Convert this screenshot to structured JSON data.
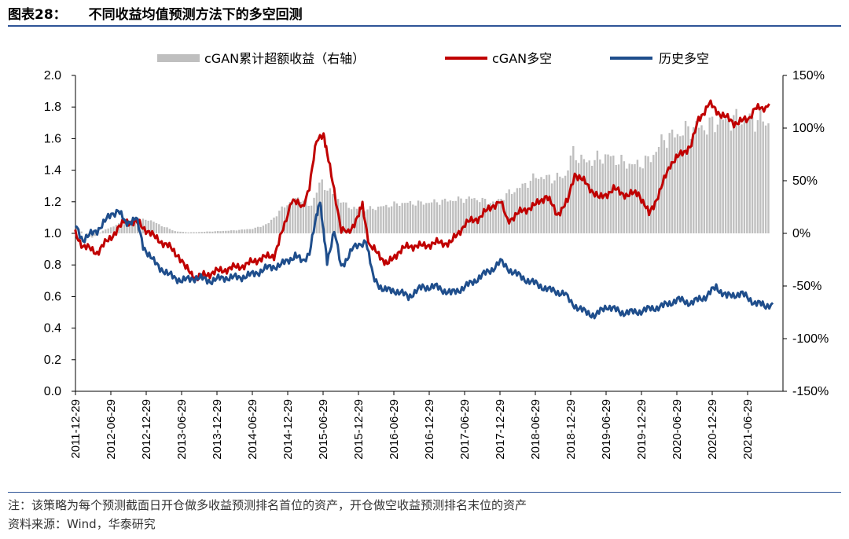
{
  "header": {
    "figure_no": "图表28：",
    "title": "不同收益均值预测方法下的多空回测"
  },
  "footer": {
    "note": "注：该策略为每个预测截面日开仓做多收益预测排名首位的资产，开仓做空收益预测排名末位的资产",
    "source": "资料来源：Wind，华泰研究"
  },
  "colors": {
    "bar": "#bfbfbf",
    "cgan": "#c00000",
    "hist": "#1f4e8c",
    "rule": "#2f5597"
  },
  "chart_data": {
    "type": "line",
    "title": "不同收益均值预测方法下的多空回测",
    "x_start": "2011-12-29",
    "x_end": "2021-12-29",
    "xticks": [
      "2011-12-29",
      "2012-06-29",
      "2012-12-29",
      "2013-06-29",
      "2013-12-29",
      "2014-06-29",
      "2014-12-29",
      "2015-06-29",
      "2015-12-29",
      "2016-06-29",
      "2016-12-29",
      "2017-06-29",
      "2017-12-29",
      "2018-06-29",
      "2018-12-29",
      "2019-06-29",
      "2019-12-29",
      "2020-06-29",
      "2020-12-29",
      "2021-06-29"
    ],
    "yleft": {
      "lim": [
        0,
        2.0
      ],
      "ticks": [
        "0.0",
        "0.2",
        "0.4",
        "0.6",
        "0.8",
        "1.0",
        "1.2",
        "1.4",
        "1.6",
        "1.8",
        "2.0"
      ]
    },
    "yright": {
      "lim": [
        -150,
        150
      ],
      "ticks": [
        "-150%",
        "-100%",
        "-50%",
        "0%",
        "50%",
        "100%",
        "150%"
      ]
    },
    "legend": [
      "cGAN累计超额收益（右轴）",
      "cGAN多空",
      "历史多空"
    ],
    "series": [
      {
        "name": "cGAN累计超额收益（右轴）",
        "kind": "bar",
        "axis": "right",
        "points": [
          [
            2011.99,
            6
          ],
          [
            2012.2,
            -5
          ],
          [
            2012.4,
            4
          ],
          [
            2012.6,
            10
          ],
          [
            2012.8,
            12
          ],
          [
            2013.0,
            15
          ],
          [
            2013.2,
            8
          ],
          [
            2013.4,
            2
          ],
          [
            2013.6,
            1
          ],
          [
            2013.9,
            2
          ],
          [
            2014.2,
            3
          ],
          [
            2014.5,
            5
          ],
          [
            2014.7,
            10
          ],
          [
            2014.95,
            30
          ],
          [
            2015.15,
            38
          ],
          [
            2015.3,
            28
          ],
          [
            2015.45,
            55
          ],
          [
            2015.6,
            42
          ],
          [
            2015.8,
            30
          ],
          [
            2016.0,
            24
          ],
          [
            2016.3,
            28
          ],
          [
            2016.6,
            32
          ],
          [
            2016.9,
            32
          ],
          [
            2017.3,
            35
          ],
          [
            2017.6,
            37
          ],
          [
            2017.9,
            32
          ],
          [
            2018.1,
            42
          ],
          [
            2018.3,
            50
          ],
          [
            2018.5,
            60
          ],
          [
            2018.7,
            58
          ],
          [
            2018.9,
            60
          ],
          [
            2019.0,
            85
          ],
          [
            2019.2,
            75
          ],
          [
            2019.5,
            82
          ],
          [
            2019.7,
            75
          ],
          [
            2019.9,
            72
          ],
          [
            2020.1,
            78
          ],
          [
            2020.3,
            100
          ],
          [
            2020.5,
            105
          ],
          [
            2020.7,
            112
          ],
          [
            2020.9,
            112
          ],
          [
            2021.1,
            120
          ],
          [
            2021.3,
            120
          ],
          [
            2021.5,
            120
          ],
          [
            2021.7,
            120
          ],
          [
            2021.8,
            115
          ]
        ]
      },
      {
        "name": "cGAN多空",
        "kind": "line",
        "axis": "left",
        "points": [
          [
            2011.99,
            1.0
          ],
          [
            2012.1,
            0.92
          ],
          [
            2012.3,
            0.88
          ],
          [
            2012.5,
            0.98
          ],
          [
            2012.7,
            1.08
          ],
          [
            2012.9,
            1.06
          ],
          [
            2013.1,
            0.98
          ],
          [
            2013.3,
            0.92
          ],
          [
            2013.45,
            0.86
          ],
          [
            2013.55,
            0.78
          ],
          [
            2013.7,
            0.72
          ],
          [
            2013.85,
            0.74
          ],
          [
            2014.0,
            0.76
          ],
          [
            2014.2,
            0.78
          ],
          [
            2014.4,
            0.8
          ],
          [
            2014.6,
            0.84
          ],
          [
            2014.8,
            0.86
          ],
          [
            2014.95,
            1.05
          ],
          [
            2015.05,
            1.22
          ],
          [
            2015.2,
            1.16
          ],
          [
            2015.3,
            1.3
          ],
          [
            2015.4,
            1.58
          ],
          [
            2015.5,
            1.64
          ],
          [
            2015.55,
            1.5
          ],
          [
            2015.65,
            1.28
          ],
          [
            2015.75,
            1.02
          ],
          [
            2015.85,
            1.0
          ],
          [
            2016.0,
            1.12
          ],
          [
            2016.05,
            1.18
          ],
          [
            2016.15,
            0.92
          ],
          [
            2016.3,
            0.86
          ],
          [
            2016.4,
            0.8
          ],
          [
            2016.55,
            0.88
          ],
          [
            2016.7,
            0.92
          ],
          [
            2016.9,
            0.92
          ],
          [
            2017.1,
            0.94
          ],
          [
            2017.3,
            0.94
          ],
          [
            2017.5,
            1.06
          ],
          [
            2017.7,
            1.1
          ],
          [
            2017.9,
            1.18
          ],
          [
            2018.0,
            1.2
          ],
          [
            2018.1,
            1.08
          ],
          [
            2018.3,
            1.14
          ],
          [
            2018.5,
            1.18
          ],
          [
            2018.65,
            1.24
          ],
          [
            2018.8,
            1.12
          ],
          [
            2018.95,
            1.2
          ],
          [
            2019.05,
            1.38
          ],
          [
            2019.2,
            1.32
          ],
          [
            2019.4,
            1.22
          ],
          [
            2019.6,
            1.28
          ],
          [
            2019.8,
            1.24
          ],
          [
            2019.95,
            1.26
          ],
          [
            2020.1,
            1.12
          ],
          [
            2020.25,
            1.26
          ],
          [
            2020.4,
            1.44
          ],
          [
            2020.55,
            1.5
          ],
          [
            2020.7,
            1.56
          ],
          [
            2020.8,
            1.72
          ],
          [
            2020.95,
            1.82
          ],
          [
            2021.1,
            1.76
          ],
          [
            2021.3,
            1.7
          ],
          [
            2021.5,
            1.72
          ],
          [
            2021.6,
            1.8
          ],
          [
            2021.7,
            1.78
          ],
          [
            2021.8,
            1.82
          ]
        ]
      },
      {
        "name": "历史多空",
        "kind": "line",
        "axis": "left",
        "points": [
          [
            2011.99,
            1.05
          ],
          [
            2012.1,
            0.96
          ],
          [
            2012.3,
            1.02
          ],
          [
            2012.5,
            1.12
          ],
          [
            2012.6,
            1.15
          ],
          [
            2012.7,
            1.06
          ],
          [
            2012.85,
            1.1
          ],
          [
            2012.95,
            0.92
          ],
          [
            2013.1,
            0.82
          ],
          [
            2013.3,
            0.74
          ],
          [
            2013.5,
            0.7
          ],
          [
            2013.7,
            0.72
          ],
          [
            2013.9,
            0.7
          ],
          [
            2014.1,
            0.72
          ],
          [
            2014.3,
            0.72
          ],
          [
            2014.5,
            0.74
          ],
          [
            2014.7,
            0.78
          ],
          [
            2014.9,
            0.8
          ],
          [
            2015.1,
            0.86
          ],
          [
            2015.2,
            0.82
          ],
          [
            2015.3,
            0.88
          ],
          [
            2015.4,
            1.1
          ],
          [
            2015.45,
            1.22
          ],
          [
            2015.5,
            1.0
          ],
          [
            2015.55,
            0.82
          ],
          [
            2015.65,
            1.02
          ],
          [
            2015.75,
            0.78
          ],
          [
            2015.9,
            0.9
          ],
          [
            2016.0,
            0.92
          ],
          [
            2016.1,
            0.96
          ],
          [
            2016.2,
            0.72
          ],
          [
            2016.35,
            0.64
          ],
          [
            2016.5,
            0.64
          ],
          [
            2016.7,
            0.6
          ],
          [
            2016.9,
            0.66
          ],
          [
            2017.1,
            0.66
          ],
          [
            2017.3,
            0.62
          ],
          [
            2017.5,
            0.66
          ],
          [
            2017.7,
            0.72
          ],
          [
            2017.9,
            0.78
          ],
          [
            2018.0,
            0.82
          ],
          [
            2018.1,
            0.78
          ],
          [
            2018.3,
            0.72
          ],
          [
            2018.5,
            0.68
          ],
          [
            2018.7,
            0.64
          ],
          [
            2018.9,
            0.62
          ],
          [
            2019.0,
            0.56
          ],
          [
            2019.2,
            0.5
          ],
          [
            2019.35,
            0.48
          ],
          [
            2019.5,
            0.54
          ],
          [
            2019.7,
            0.5
          ],
          [
            2019.9,
            0.5
          ],
          [
            2020.1,
            0.52
          ],
          [
            2020.3,
            0.54
          ],
          [
            2020.5,
            0.58
          ],
          [
            2020.7,
            0.56
          ],
          [
            2020.9,
            0.6
          ],
          [
            2021.05,
            0.66
          ],
          [
            2021.2,
            0.6
          ],
          [
            2021.4,
            0.62
          ],
          [
            2021.6,
            0.56
          ],
          [
            2021.75,
            0.54
          ],
          [
            2021.85,
            0.56
          ]
        ]
      }
    ]
  }
}
